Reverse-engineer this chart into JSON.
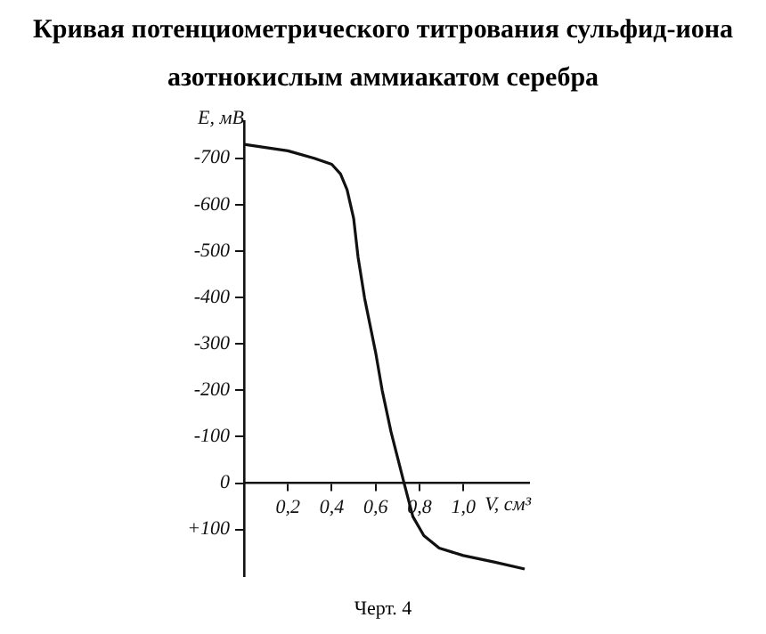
{
  "chart_data": {
    "type": "line",
    "title": "Кривая потенциометрического титрования сульфид-иона азотнокислым аммиакатом серебра",
    "xlabel": "V, см³",
    "ylabel": "E, мВ",
    "annotations": [
      "Черт. 4"
    ],
    "x": [
      0,
      0.2,
      0.32,
      0.4,
      0.44,
      0.47,
      0.5,
      0.52,
      0.55,
      0.6,
      0.63,
      0.67,
      0.73,
      0.77,
      0.82,
      0.89,
      1.0,
      1.14,
      1.28
    ],
    "series": [
      {
        "color": "#111111",
        "values": [
          -730,
          -716,
          -700,
          -687,
          -666,
          -632,
          -570,
          -487,
          -398,
          -282,
          -200,
          -111,
          0,
          72,
          113,
          140,
          156,
          170,
          185
        ]
      }
    ],
    "xlim": [
      0,
      1.3
    ],
    "xticks": [
      {
        "value": 0.2,
        "label": "0,2"
      },
      {
        "value": 0.4,
        "label": "0,4"
      },
      {
        "value": 0.6,
        "label": "0,6"
      },
      {
        "value": 0.8,
        "label": "0,8"
      },
      {
        "value": 1.0,
        "label": "1,0"
      }
    ],
    "ylim": [
      200,
      -780
    ],
    "yticks": [
      -700,
      -600,
      -500,
      -400,
      -300,
      -200,
      -100,
      0,
      {
        "value": 100,
        "label": "+100"
      }
    ],
    "grid": false,
    "legend": false,
    "marker": "none",
    "line_style": "solid"
  }
}
